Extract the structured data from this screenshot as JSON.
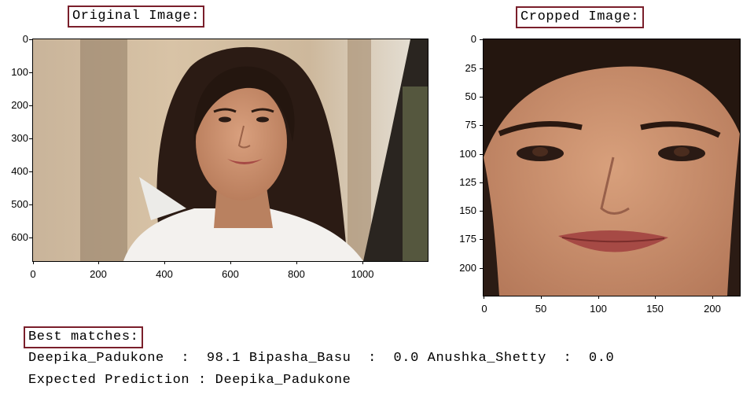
{
  "original": {
    "title": "Original Image:",
    "x_ticks": [
      "0",
      "200",
      "400",
      "600",
      "800",
      "1000"
    ],
    "y_ticks": [
      "0",
      "100",
      "200",
      "300",
      "400",
      "500",
      "600"
    ]
  },
  "cropped": {
    "title": "Cropped Image:",
    "x_ticks": [
      "0",
      "50",
      "100",
      "150",
      "200"
    ],
    "y_ticks": [
      "0",
      "25",
      "50",
      "75",
      "100",
      "125",
      "150",
      "175",
      "200"
    ]
  },
  "results": {
    "heading": "Best matches:",
    "matches_line": "Deepika_Padukone  :  98.1 Bipasha_Basu  :  0.0 Anushka_Shetty  :  0.0",
    "expected_line": "Expected Prediction : Deepika_Padukone"
  },
  "colors": {
    "label_border": "#7a1f2b"
  }
}
